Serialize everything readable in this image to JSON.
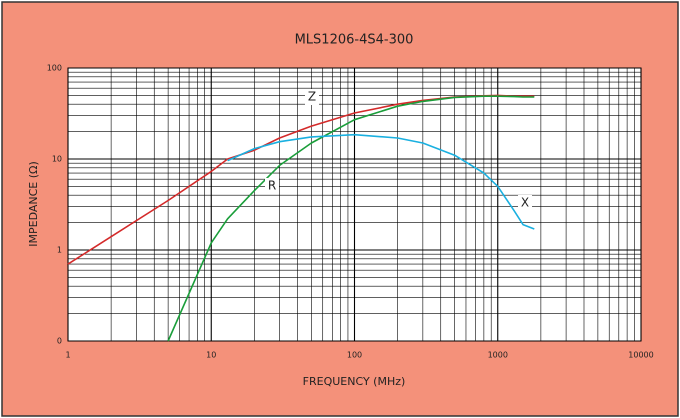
{
  "chart_data": {
    "type": "line",
    "title": "MLS1206-4S4-300",
    "x_label": "FREQUENCY (MHz)",
    "y_label": "IMPEDANCE (Ω)",
    "xscale": "log",
    "yscale": "log",
    "grid": true,
    "xlim": [
      1,
      10000
    ],
    "xticks": [
      1,
      10,
      100,
      1000,
      10000
    ],
    "xminor": [
      2,
      3,
      4,
      5,
      6,
      7,
      8,
      9,
      20,
      30,
      40,
      50,
      60,
      70,
      80,
      90,
      200,
      300,
      400,
      500,
      600,
      700,
      800,
      900,
      2000,
      3000,
      4000,
      5000,
      6000,
      7000,
      8000,
      9000
    ],
    "ylim": [
      0.1,
      100
    ],
    "yticks": [
      {
        "value": 0.1,
        "label": "0"
      },
      1,
      10,
      100
    ],
    "yminor": [
      0.2,
      0.3,
      0.4,
      0.5,
      0.6,
      0.7,
      0.8,
      0.9,
      2,
      3,
      4,
      5,
      6,
      7,
      8,
      9,
      20,
      30,
      40,
      50,
      60,
      70,
      80,
      90
    ],
    "x": [
      1,
      2,
      5,
      10,
      13,
      20,
      30,
      50,
      100,
      200,
      300,
      500,
      800,
      1000,
      1300,
      1500,
      1800
    ],
    "series": [
      {
        "name": "Z",
        "color": "#d42a2a",
        "values": [
          0.7,
          1.4,
          3.5,
          7.3,
          10,
          12.5,
          17,
          23,
          32,
          40,
          44,
          48,
          49.5,
          50,
          49,
          49,
          49
        ]
      },
      {
        "name": "R",
        "color": "#1a9e3a",
        "values": [
          null,
          null,
          0.1,
          1.2,
          2.2,
          4.5,
          8.5,
          15,
          27,
          38,
          43,
          47.5,
          49,
          49,
          48.5,
          48,
          48
        ]
      },
      {
        "name": "X",
        "color": "#1ab0e0",
        "values": [
          null,
          null,
          null,
          null,
          9.6,
          13,
          15.5,
          17.5,
          18.5,
          17,
          15,
          11,
          7,
          5,
          2.7,
          1.9,
          1.7
        ]
      }
    ],
    "annotations": [
      "Z",
      "R",
      "X"
    ]
  }
}
